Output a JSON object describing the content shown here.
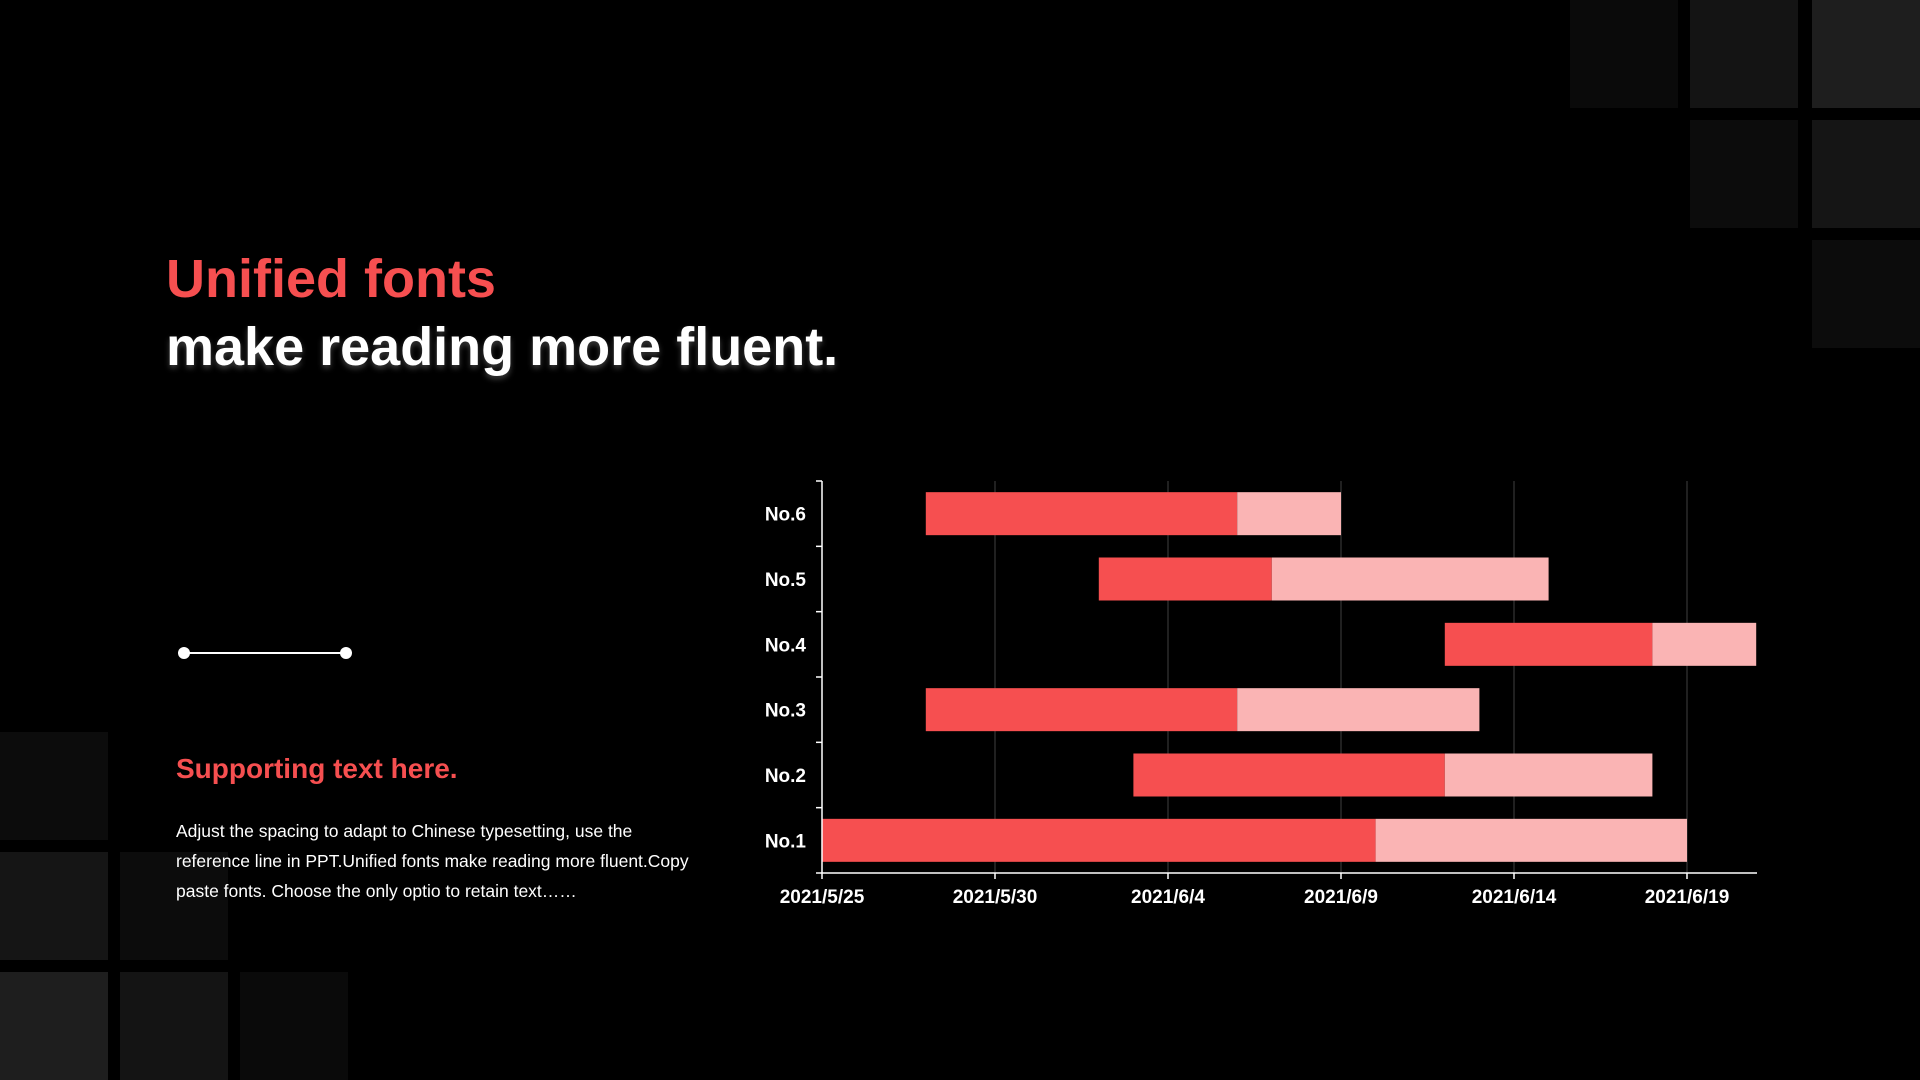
{
  "slide": {
    "title_line1": "Unified fonts",
    "title_line2": "make reading more fluent.",
    "support_heading": "Supporting text here.",
    "support_body": "Adjust the spacing to adapt to Chinese typesetting, use the reference line in PPT.Unified fonts make reading more fluent.Copy paste fonts. Choose the only optio to retain text……"
  },
  "colors": {
    "accent": "#f64f50",
    "accent_light": "#fab4b4",
    "text": "#ffffff",
    "background": "#000000"
  },
  "chart_data": {
    "type": "bar",
    "orientation": "horizontal",
    "stacked": true,
    "categories": [
      "No.1",
      "No.2",
      "No.3",
      "No.4",
      "No.5",
      "No.6"
    ],
    "x_axis": {
      "type": "date",
      "min": "2021-05-25",
      "max": "2021-06-21",
      "ticks": [
        "2021-05-25",
        "2021-05-30",
        "2021-06-04",
        "2021-06-09",
        "2021-06-14",
        "2021-06-19"
      ],
      "tick_labels": [
        "2021/5/25",
        "2021/5/30",
        "2021/6/4",
        "2021/6/9",
        "2021/6/14",
        "2021/6/19"
      ]
    },
    "grid": "vertical",
    "legend": "none",
    "tasks": [
      {
        "category": "No.1",
        "start": "2021-05-25",
        "done_until": "2021-06-10",
        "end": "2021-06-19"
      },
      {
        "category": "No.2",
        "start": "2021-06-03",
        "done_until": "2021-06-12",
        "end": "2021-06-18"
      },
      {
        "category": "No.3",
        "start": "2021-05-28",
        "done_until": "2021-06-06",
        "end": "2021-06-13"
      },
      {
        "category": "No.4",
        "start": "2021-06-12",
        "done_until": "2021-06-18",
        "end": "2021-06-21"
      },
      {
        "category": "No.5",
        "start": "2021-06-02",
        "done_until": "2021-06-07",
        "end": "2021-06-15"
      },
      {
        "category": "No.6",
        "start": "2021-05-28",
        "done_until": "2021-06-06",
        "end": "2021-06-09"
      }
    ]
  }
}
